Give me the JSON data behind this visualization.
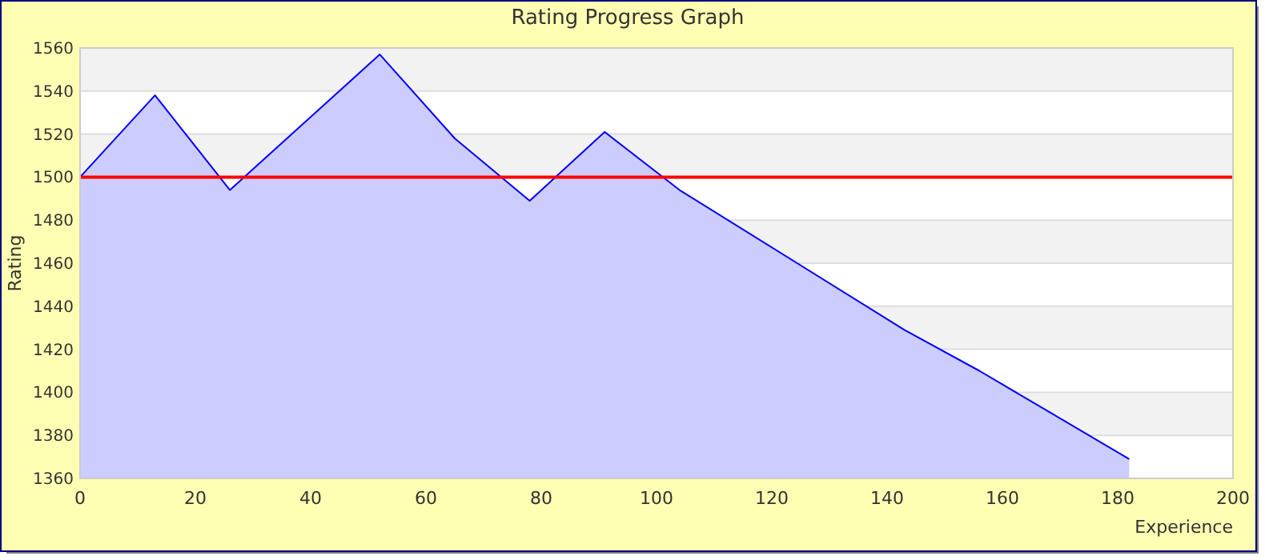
{
  "chart_data": {
    "type": "area",
    "title": "Rating Progress Graph",
    "xlabel": "Experience",
    "ylabel": "Rating",
    "x": [
      0,
      13,
      26,
      52,
      65,
      78,
      91,
      104,
      143,
      156,
      182
    ],
    "series": [
      {
        "color": "#0000ff",
        "values": [
          1500,
          1538,
          1494,
          1557,
          1518,
          1489,
          1521,
          1494,
          1429,
          1410,
          1369
        ]
      }
    ],
    "xlim": [
      0,
      200
    ],
    "xticks": [
      0,
      20,
      40,
      60,
      80,
      100,
      120,
      140,
      160,
      180,
      200
    ],
    "ylim": [
      1360,
      1560
    ],
    "yticks": [
      1360,
      1380,
      1400,
      1420,
      1440,
      1460,
      1480,
      1500,
      1520,
      1540,
      1560
    ],
    "grid": "y",
    "ref_lines": [
      {
        "axis": "y",
        "value": 1500,
        "color": "#ff0000"
      }
    ]
  }
}
